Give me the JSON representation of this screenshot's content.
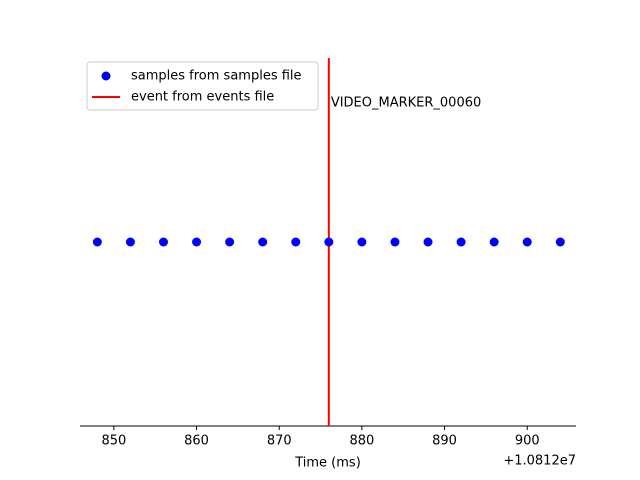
{
  "chart_data": {
    "type": "scatter",
    "xlabel": "Time (ms)",
    "x_offset_label": "+1.0812e7",
    "series": [
      {
        "name": "samples from samples file",
        "color": "#0000ff",
        "x": [
          10812848,
          10812852,
          10812856,
          10812860,
          10812864,
          10812868,
          10812872,
          10812876,
          10812880,
          10812884,
          10812888,
          10812892,
          10812896,
          10812900,
          10812904
        ],
        "values": [
          0,
          0,
          0,
          0,
          0,
          0,
          0,
          0,
          0,
          0,
          0,
          0,
          0,
          0,
          0
        ]
      }
    ],
    "events": [
      {
        "name": "event from events file",
        "color": "#ff0000",
        "x": 10812876,
        "label": "VIDEO_MARKER_00060"
      }
    ],
    "xlim": [
      10812845.9,
      10812905.9
    ],
    "ylim": [
      -0.055,
      0.055
    ],
    "xticks": [
      {
        "value": 10812850,
        "label": "850"
      },
      {
        "value": 10812860,
        "label": "860"
      },
      {
        "value": 10812870,
        "label": "870"
      },
      {
        "value": 10812880,
        "label": "880"
      },
      {
        "value": 10812890,
        "label": "890"
      },
      {
        "value": 10812900,
        "label": "900"
      }
    ],
    "legend": "upper left"
  }
}
